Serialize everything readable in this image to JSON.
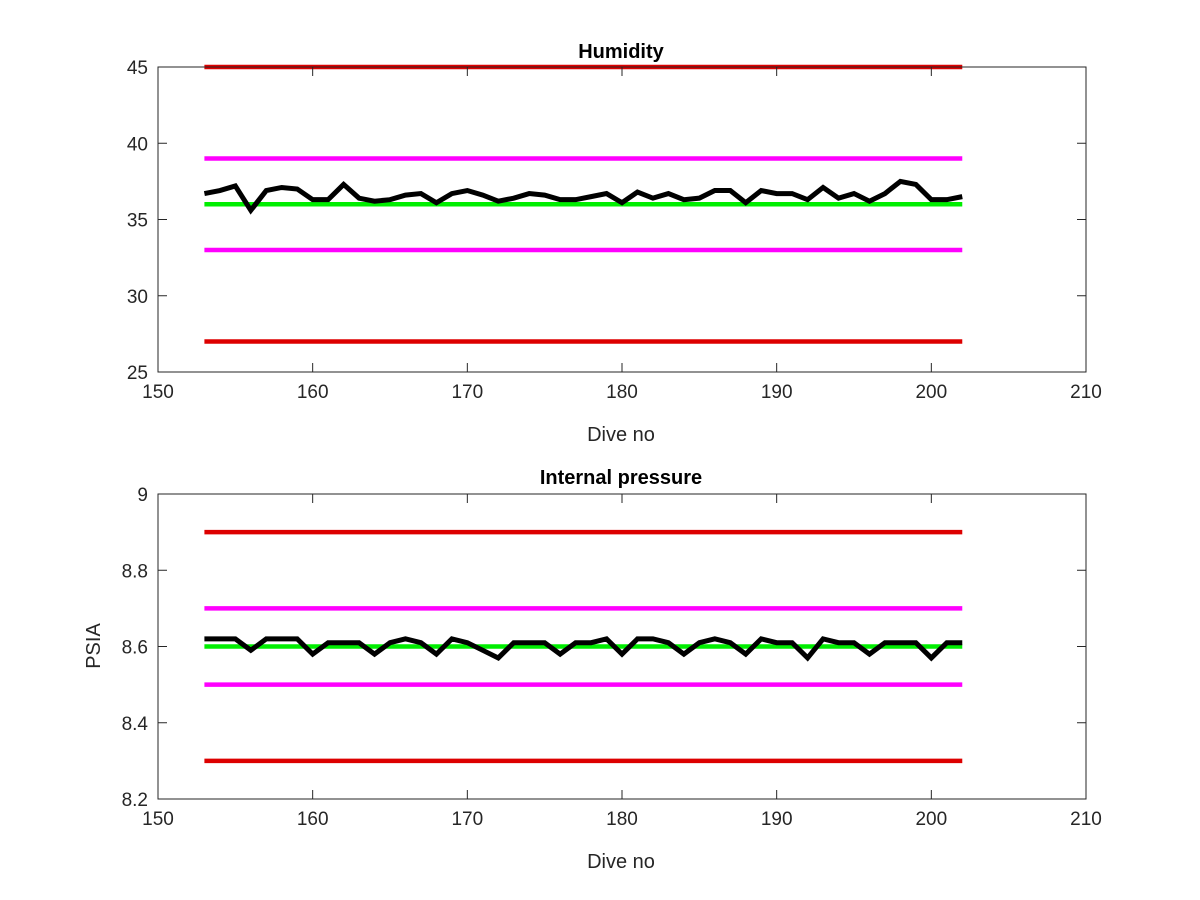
{
  "chart_data": [
    {
      "type": "line",
      "title": "Humidity",
      "xlabel": "Dive no",
      "ylabel": "",
      "xlim": [
        150,
        210
      ],
      "ylim": [
        25,
        45
      ],
      "xticks": [
        150,
        160,
        170,
        180,
        190,
        200,
        210
      ],
      "yticks": [
        25,
        30,
        35,
        40,
        45
      ],
      "grid": false,
      "legend": "none",
      "series": [
        {
          "color": "#dd0000",
          "x": [
            153,
            202
          ],
          "y": [
            45,
            45
          ]
        },
        {
          "color": "#ff00ff",
          "x": [
            153,
            202
          ],
          "y": [
            39,
            39
          ]
        },
        {
          "color": "#00ee00",
          "x": [
            153,
            202
          ],
          "y": [
            36,
            36
          ]
        },
        {
          "color": "#ff00ff",
          "x": [
            153,
            202
          ],
          "y": [
            33,
            33
          ]
        },
        {
          "color": "#dd0000",
          "x": [
            153,
            202
          ],
          "y": [
            27,
            27
          ]
        },
        {
          "color": "#000000",
          "x": [
            153,
            154,
            155,
            156,
            157,
            158,
            159,
            160,
            161,
            162,
            163,
            164,
            165,
            166,
            167,
            168,
            169,
            170,
            171,
            172,
            173,
            174,
            175,
            176,
            177,
            178,
            179,
            180,
            181,
            182,
            183,
            184,
            185,
            186,
            187,
            188,
            189,
            190,
            191,
            192,
            193,
            194,
            195,
            196,
            197,
            198,
            199,
            200,
            201,
            202
          ],
          "y": [
            36.7,
            36.9,
            37.2,
            35.6,
            36.9,
            37.1,
            37.0,
            36.3,
            36.3,
            37.3,
            36.4,
            36.2,
            36.3,
            36.6,
            36.7,
            36.1,
            36.7,
            36.9,
            36.6,
            36.2,
            36.4,
            36.7,
            36.6,
            36.3,
            36.3,
            36.5,
            36.7,
            36.1,
            36.8,
            36.4,
            36.7,
            36.3,
            36.4,
            36.9,
            36.9,
            36.1,
            36.9,
            36.7,
            36.7,
            36.3,
            37.1,
            36.4,
            36.7,
            36.2,
            36.7,
            37.5,
            37.3,
            36.3,
            36.3,
            36.5
          ]
        }
      ]
    },
    {
      "type": "line",
      "title": "Internal pressure",
      "xlabel": "Dive no",
      "ylabel": "PSIA",
      "xlim": [
        150,
        210
      ],
      "ylim": [
        8.2,
        9
      ],
      "xticks": [
        150,
        160,
        170,
        180,
        190,
        200,
        210
      ],
      "yticks": [
        "8.2",
        "8.4",
        "8.6",
        "8.8",
        "9"
      ],
      "grid": false,
      "legend": "none",
      "series": [
        {
          "color": "#dd0000",
          "x": [
            153,
            202
          ],
          "y": [
            8.9,
            8.9
          ]
        },
        {
          "color": "#ff00ff",
          "x": [
            153,
            202
          ],
          "y": [
            8.7,
            8.7
          ]
        },
        {
          "color": "#00ee00",
          "x": [
            153,
            202
          ],
          "y": [
            8.6,
            8.6
          ]
        },
        {
          "color": "#ff00ff",
          "x": [
            153,
            202
          ],
          "y": [
            8.5,
            8.5
          ]
        },
        {
          "color": "#dd0000",
          "x": [
            153,
            202
          ],
          "y": [
            8.3,
            8.3
          ]
        },
        {
          "color": "#000000",
          "x": [
            153,
            154,
            155,
            156,
            157,
            158,
            159,
            160,
            161,
            162,
            163,
            164,
            165,
            166,
            167,
            168,
            169,
            170,
            171,
            172,
            173,
            174,
            175,
            176,
            177,
            178,
            179,
            180,
            181,
            182,
            183,
            184,
            185,
            186,
            187,
            188,
            189,
            190,
            191,
            192,
            193,
            194,
            195,
            196,
            197,
            198,
            199,
            200,
            201,
            202
          ],
          "y": [
            8.62,
            8.62,
            8.62,
            8.59,
            8.62,
            8.62,
            8.62,
            8.58,
            8.61,
            8.61,
            8.61,
            8.58,
            8.61,
            8.62,
            8.61,
            8.58,
            8.62,
            8.61,
            8.59,
            8.57,
            8.61,
            8.61,
            8.61,
            8.58,
            8.61,
            8.61,
            8.62,
            8.58,
            8.62,
            8.62,
            8.61,
            8.58,
            8.61,
            8.62,
            8.61,
            8.58,
            8.62,
            8.61,
            8.61,
            8.57,
            8.62,
            8.61,
            8.61,
            8.58,
            8.61,
            8.61,
            8.61,
            8.57,
            8.61,
            8.61
          ]
        }
      ]
    }
  ]
}
